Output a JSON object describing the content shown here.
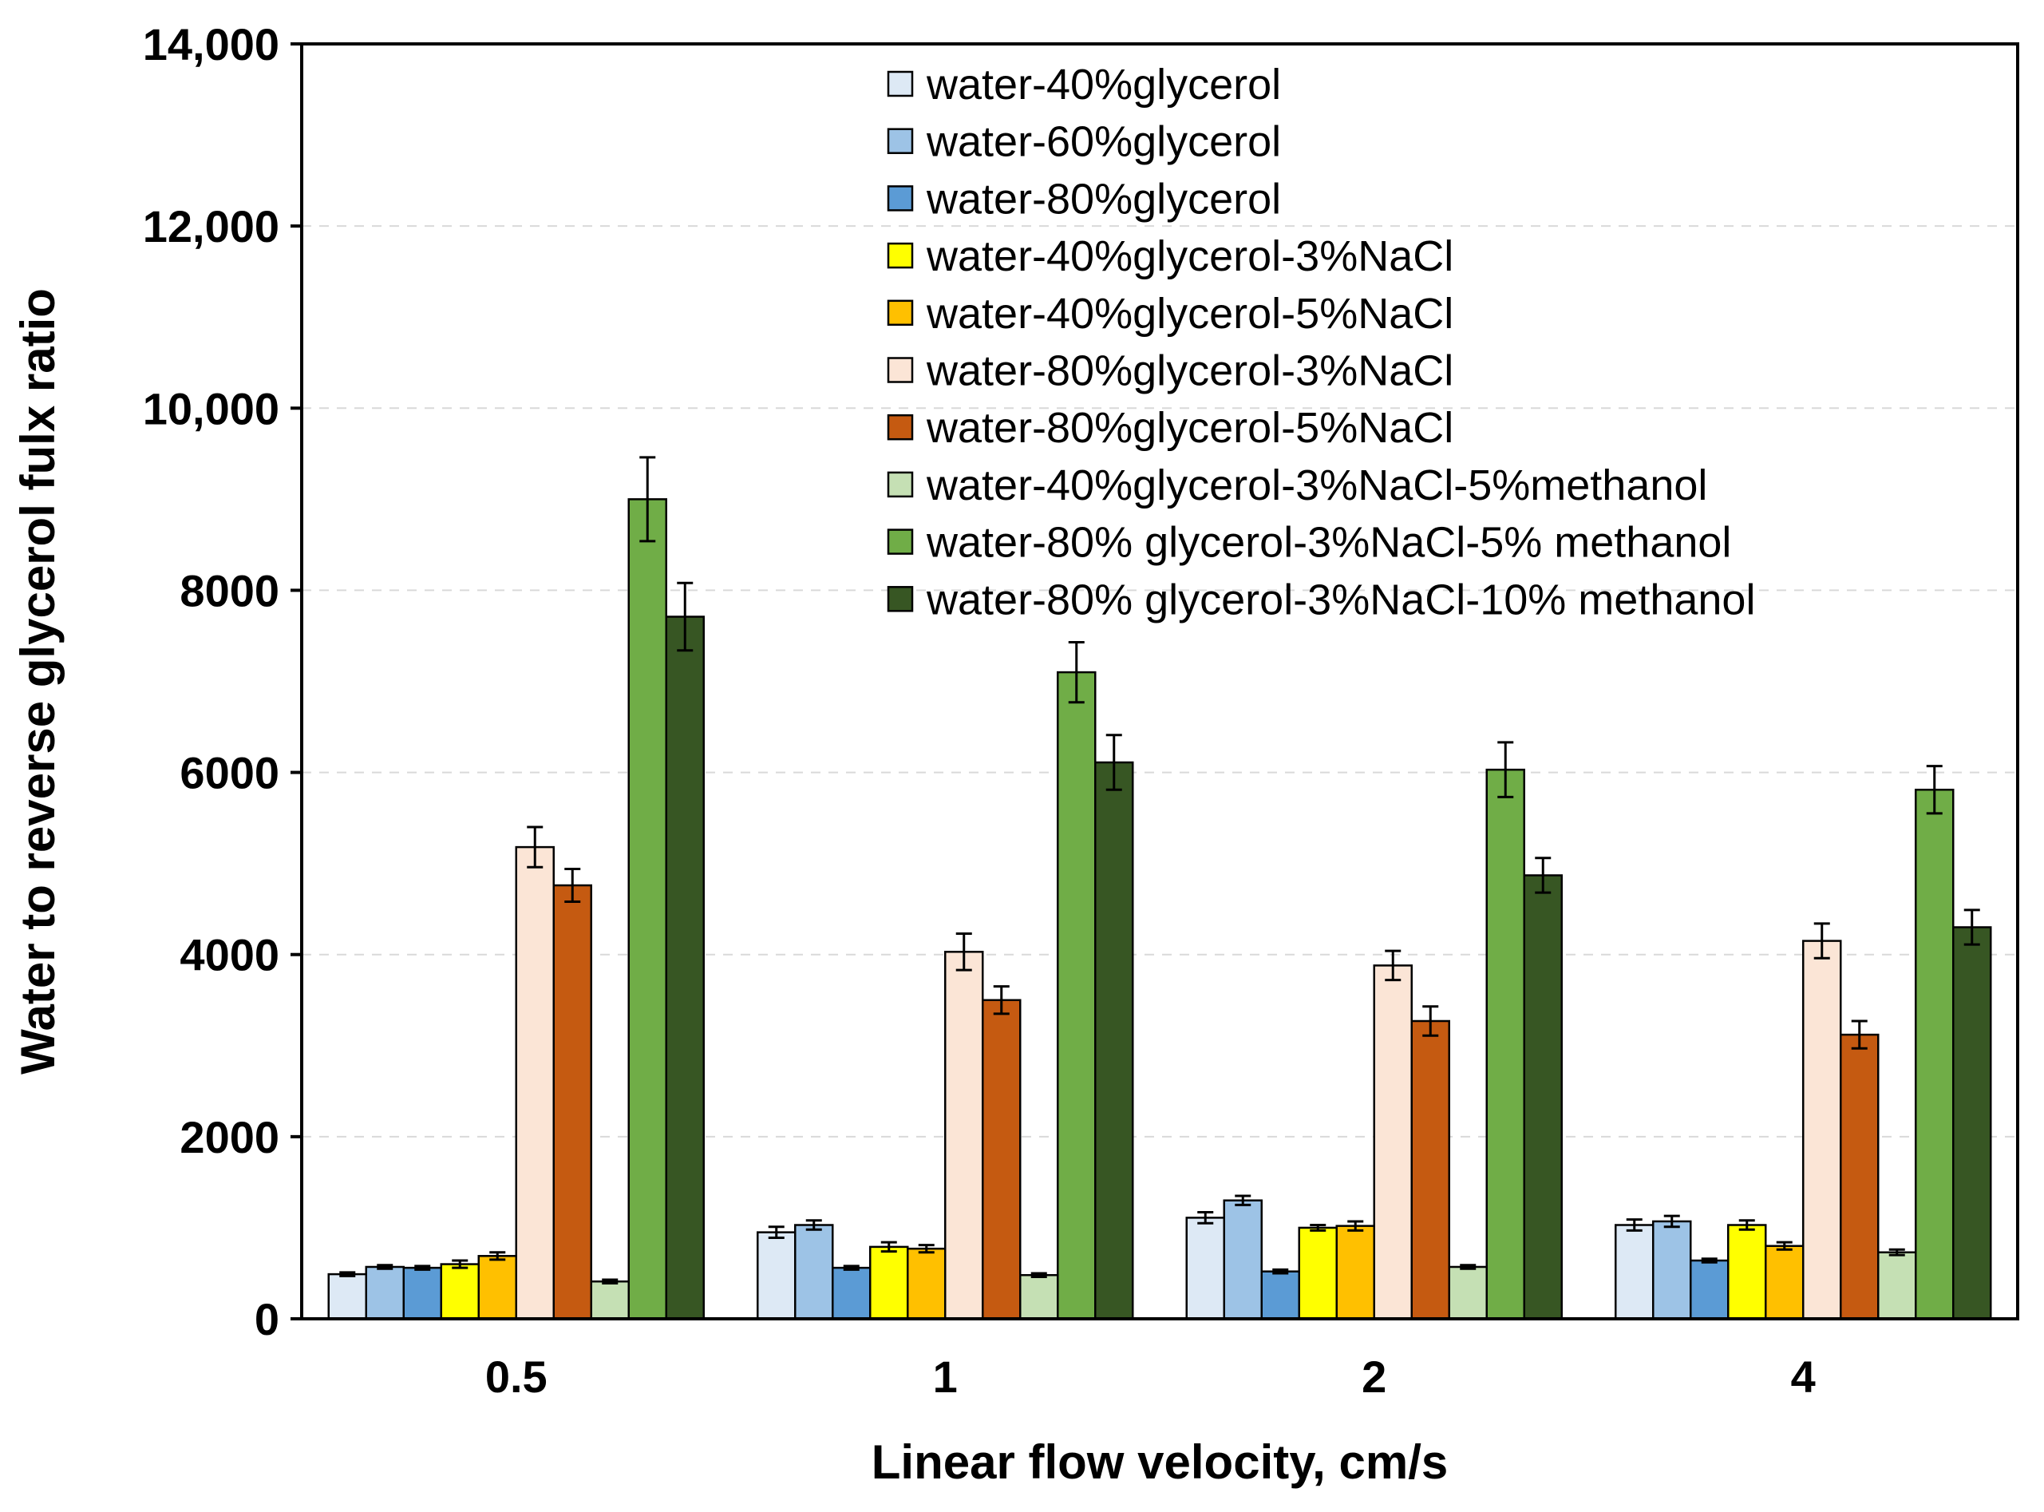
{
  "chart_data": {
    "type": "bar",
    "title": "",
    "xlabel": "Linear flow velocity, cm/s",
    "ylabel": "Water to reverse glycerol fulx ratio",
    "ylim": [
      0,
      14000
    ],
    "y_ticks": [
      0,
      2000,
      4000,
      6000,
      8000,
      10000,
      12000,
      14000
    ],
    "y_tick_labels": [
      "0",
      "2000",
      "4000",
      "6000",
      "8000",
      "10,000",
      "12,000",
      "14,000"
    ],
    "grid": "horizontal dashed",
    "legend_position": "top-right",
    "categories": [
      "0.5",
      "1",
      "2",
      "4"
    ],
    "series": [
      {
        "name": "water-40%glycerol",
        "color": "#dde9f5",
        "values": [
          490,
          950,
          1110,
          1030
        ],
        "errors": [
          20,
          60,
          60,
          60
        ]
      },
      {
        "name": "water-60%glycerol",
        "color": "#9dc3e6",
        "values": [
          570,
          1030,
          1300,
          1070
        ],
        "errors": [
          20,
          50,
          50,
          60
        ]
      },
      {
        "name": "water-80%glycerol",
        "color": "#5b9bd5",
        "values": [
          560,
          560,
          520,
          640
        ],
        "errors": [
          20,
          20,
          20,
          20
        ]
      },
      {
        "name": "water-40%glycerol-3%NaCl",
        "color": "#ffff00",
        "values": [
          600,
          790,
          1000,
          1030
        ],
        "errors": [
          40,
          50,
          30,
          50
        ]
      },
      {
        "name": "water-40%glycerol-5%NaCl",
        "color": "#ffc000",
        "values": [
          690,
          770,
          1020,
          800
        ],
        "errors": [
          40,
          40,
          50,
          40
        ]
      },
      {
        "name": "water-80%glycerol-3%NaCl",
        "color": "#fbe5d6",
        "values": [
          5180,
          4030,
          3880,
          4150
        ],
        "errors": [
          220,
          200,
          160,
          190
        ]
      },
      {
        "name": "water-80%glycerol-5%NaCl",
        "color": "#c55a11",
        "values": [
          4760,
          3500,
          3270,
          3120
        ],
        "errors": [
          180,
          150,
          160,
          150
        ]
      },
      {
        "name": "water-40%glycerol-3%NaCl-5%methanol",
        "color": "#c5e0b4",
        "values": [
          410,
          480,
          570,
          730
        ],
        "errors": [
          20,
          20,
          20,
          30
        ]
      },
      {
        "name": "water-80% glycerol-3%NaCl-5% methanol",
        "color": "#70ad47",
        "values": [
          9000,
          7100,
          6030,
          5810
        ],
        "errors": [
          460,
          330,
          300,
          260
        ]
      },
      {
        "name": "water-80% glycerol-3%NaCl-10% methanol",
        "color": "#375623",
        "values": [
          7710,
          6110,
          4870,
          4300
        ],
        "errors": [
          370,
          300,
          190,
          190
        ]
      }
    ]
  }
}
